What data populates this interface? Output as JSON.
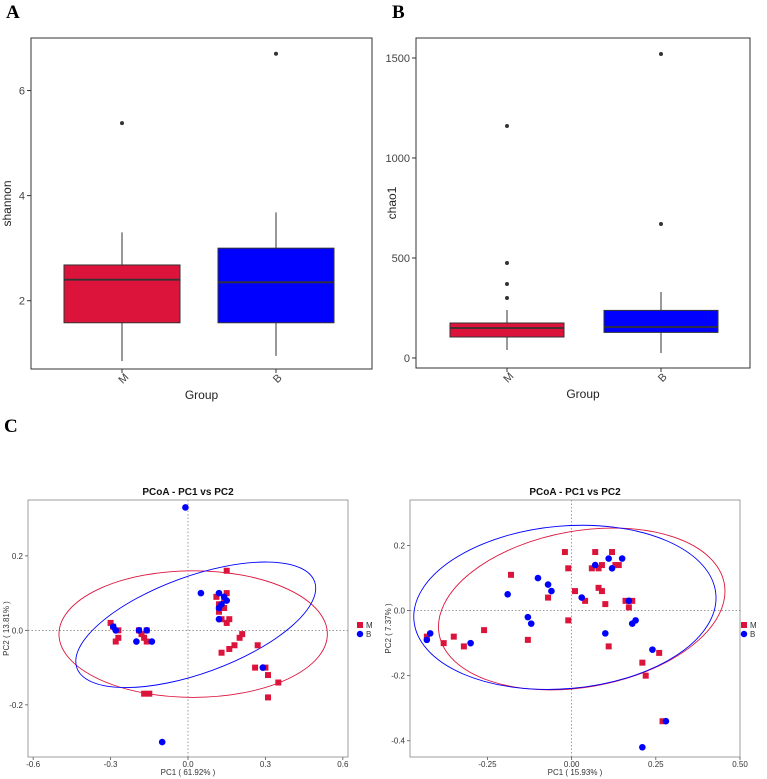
{
  "panels": {
    "a": "A",
    "b": "B",
    "c": "C"
  },
  "chart_data": [
    {
      "id": "shannon-box",
      "type": "box",
      "xlabel": "Group",
      "ylabel": "shannon",
      "ylim": [
        0.7,
        7.0
      ],
      "yticks": [
        2,
        4,
        6
      ],
      "categories": [
        "M",
        "B"
      ],
      "colors": {
        "M": "#DC143C",
        "B": "#0000FF"
      },
      "boxes": [
        {
          "name": "M",
          "whisker_low": 0.85,
          "q1": 1.58,
          "median": 2.4,
          "q3": 2.68,
          "whisker_high": 3.3,
          "outliers": [
            5.38
          ]
        },
        {
          "name": "B",
          "whisker_low": 0.95,
          "q1": 1.58,
          "median": 2.35,
          "q3": 3.0,
          "whisker_high": 3.68,
          "outliers": [
            6.7
          ]
        }
      ]
    },
    {
      "id": "chao1-box",
      "type": "box",
      "xlabel": "Group",
      "ylabel": "chao1",
      "ylim": [
        -50,
        1600
      ],
      "yticks": [
        0,
        500,
        1000,
        1500
      ],
      "categories": [
        "M",
        "B"
      ],
      "colors": {
        "M": "#DC143C",
        "B": "#0000FF"
      },
      "boxes": [
        {
          "name": "M",
          "whisker_low": 40,
          "q1": 105,
          "median": 150,
          "q3": 175,
          "whisker_high": 240,
          "outliers": [
            300,
            370,
            475,
            1160
          ]
        },
        {
          "name": "B",
          "whisker_low": 25,
          "q1": 128,
          "median": 155,
          "q3": 238,
          "whisker_high": 330,
          "outliers": [
            670,
            1520
          ]
        }
      ]
    },
    {
      "id": "pcoa-1",
      "type": "scatter",
      "title": "PCoA - PC1 vs PC2",
      "xlabel": "PC1 ( 61.92% )",
      "ylabel": "PC2 ( 13.81% )",
      "xlim": [
        -0.62,
        0.62
      ],
      "ylim": [
        -0.34,
        0.35
      ],
      "xticks": [
        -0.6,
        -0.3,
        0.0,
        0.3,
        0.6
      ],
      "xtick_labels": [
        "-0.6",
        "-0.3",
        "0.0",
        "0.3",
        "0.6"
      ],
      "yticks": [
        -0.2,
        0.0,
        0.2
      ],
      "ytick_labels": [
        "-0.2",
        "0.0",
        "0.2"
      ],
      "legend": [
        {
          "name": "M",
          "color": "#DC143C",
          "marker": "square"
        },
        {
          "name": "B",
          "color": "#0000FF",
          "marker": "circle"
        }
      ],
      "ellipses": [
        {
          "name": "M",
          "color": "#DC143C",
          "cx": 0.02,
          "cy": -0.01,
          "rx": 0.52,
          "ry": 0.17,
          "angle": 0
        },
        {
          "name": "B",
          "color": "#0000FF",
          "cx": 0.03,
          "cy": 0.015,
          "rx": 0.49,
          "ry": 0.13,
          "angle": 20
        }
      ],
      "series": [
        {
          "name": "M",
          "color": "#DC143C",
          "marker": "square",
          "points": [
            [
              -0.3,
              0.02
            ],
            [
              -0.29,
              0.01
            ],
            [
              -0.27,
              0.0
            ],
            [
              -0.28,
              -0.03
            ],
            [
              -0.27,
              -0.02
            ],
            [
              -0.19,
              0.0
            ],
            [
              -0.18,
              -0.01
            ],
            [
              -0.17,
              -0.02
            ],
            [
              -0.16,
              0.0
            ],
            [
              -0.16,
              -0.03
            ],
            [
              -0.17,
              -0.17
            ],
            [
              -0.15,
              -0.17
            ],
            [
              0.11,
              0.09
            ],
            [
              0.12,
              0.07
            ],
            [
              0.14,
              0.06
            ],
            [
              0.15,
              0.1
            ],
            [
              0.15,
              0.16
            ],
            [
              0.12,
              0.05
            ],
            [
              0.13,
              0.03
            ],
            [
              0.15,
              0.02
            ],
            [
              0.16,
              0.03
            ],
            [
              0.14,
              0.08
            ],
            [
              0.13,
              -0.06
            ],
            [
              0.16,
              -0.05
            ],
            [
              0.18,
              -0.04
            ],
            [
              0.2,
              -0.02
            ],
            [
              0.21,
              -0.01
            ],
            [
              0.26,
              -0.1
            ],
            [
              0.27,
              -0.04
            ],
            [
              0.3,
              -0.1
            ],
            [
              0.31,
              -0.12
            ],
            [
              0.31,
              -0.18
            ],
            [
              0.35,
              -0.14
            ]
          ]
        },
        {
          "name": "B",
          "color": "#0000FF",
          "marker": "circle",
          "points": [
            [
              -0.29,
              0.01
            ],
            [
              -0.28,
              0.0
            ],
            [
              -0.2,
              -0.03
            ],
            [
              -0.19,
              0.0
            ],
            [
              -0.16,
              0.0
            ],
            [
              -0.14,
              -0.03
            ],
            [
              -0.01,
              0.33
            ],
            [
              -0.1,
              -0.3
            ],
            [
              0.05,
              0.1
            ],
            [
              0.12,
              0.1
            ],
            [
              0.12,
              0.06
            ],
            [
              0.13,
              0.07
            ],
            [
              0.14,
              0.09
            ],
            [
              0.15,
              0.08
            ],
            [
              0.12,
              0.03
            ],
            [
              0.29,
              -0.1
            ]
          ]
        }
      ]
    },
    {
      "id": "pcoa-2",
      "type": "scatter",
      "title": "PCoA - PC1 vs PC2",
      "xlabel": "PC1 ( 15.93% )",
      "ylabel": "PC2 ( 7.37% )",
      "xlim": [
        -0.48,
        0.5
      ],
      "ylim": [
        -0.45,
        0.34
      ],
      "xticks": [
        -0.25,
        0.0,
        0.25,
        0.5
      ],
      "xtick_labels": [
        "-0.25",
        "0.00",
        "0.25",
        "0.50"
      ],
      "yticks": [
        -0.4,
        -0.2,
        0.0,
        0.2
      ],
      "ytick_labels": [
        "-0.4",
        "-0.2",
        "0.0",
        "0.2"
      ],
      "legend": [
        {
          "name": "M",
          "color": "#DC143C",
          "marker": "square"
        },
        {
          "name": "B",
          "color": "#0000FF",
          "marker": "circle"
        }
      ],
      "ellipses": [
        {
          "name": "M",
          "color": "#DC143C",
          "cx": 0.03,
          "cy": 0.005,
          "rx": 0.43,
          "ry": 0.24,
          "angle": 10
        },
        {
          "name": "B",
          "color": "#0000FF",
          "cx": -0.02,
          "cy": 0.01,
          "rx": 0.45,
          "ry": 0.25,
          "angle": 5
        }
      ],
      "series": [
        {
          "name": "M",
          "color": "#DC143C",
          "marker": "square",
          "points": [
            [
              -0.43,
              -0.08
            ],
            [
              -0.38,
              -0.1
            ],
            [
              -0.35,
              -0.08
            ],
            [
              -0.32,
              -0.11
            ],
            [
              -0.26,
              -0.06
            ],
            [
              -0.18,
              0.11
            ],
            [
              -0.13,
              -0.09
            ],
            [
              -0.07,
              0.04
            ],
            [
              -0.02,
              0.18
            ],
            [
              -0.01,
              0.13
            ],
            [
              -0.01,
              -0.03
            ],
            [
              0.01,
              0.06
            ],
            [
              0.04,
              0.03
            ],
            [
              0.06,
              0.13
            ],
            [
              0.07,
              0.18
            ],
            [
              0.08,
              0.13
            ],
            [
              0.08,
              0.07
            ],
            [
              0.09,
              0.06
            ],
            [
              0.09,
              0.14
            ],
            [
              0.1,
              0.02
            ],
            [
              0.11,
              -0.11
            ],
            [
              0.12,
              0.18
            ],
            [
              0.13,
              0.14
            ],
            [
              0.14,
              0.14
            ],
            [
              0.16,
              0.03
            ],
            [
              0.17,
              0.01
            ],
            [
              0.18,
              0.03
            ],
            [
              0.21,
              -0.16
            ],
            [
              0.22,
              -0.2
            ],
            [
              0.26,
              -0.13
            ],
            [
              0.27,
              -0.34
            ]
          ]
        },
        {
          "name": "B",
          "color": "#0000FF",
          "marker": "circle",
          "points": [
            [
              -0.42,
              -0.07
            ],
            [
              -0.43,
              -0.09
            ],
            [
              -0.3,
              -0.1
            ],
            [
              -0.19,
              0.05
            ],
            [
              -0.13,
              -0.02
            ],
            [
              -0.12,
              -0.04
            ],
            [
              -0.1,
              0.1
            ],
            [
              -0.07,
              0.08
            ],
            [
              -0.06,
              0.06
            ],
            [
              0.03,
              0.04
            ],
            [
              0.07,
              0.14
            ],
            [
              0.1,
              -0.07
            ],
            [
              0.11,
              0.16
            ],
            [
              0.12,
              0.13
            ],
            [
              0.15,
              0.16
            ],
            [
              0.17,
              0.03
            ],
            [
              0.18,
              -0.04
            ],
            [
              0.19,
              -0.03
            ],
            [
              0.21,
              -0.42
            ],
            [
              0.24,
              -0.12
            ],
            [
              0.28,
              -0.34
            ]
          ]
        }
      ]
    }
  ]
}
